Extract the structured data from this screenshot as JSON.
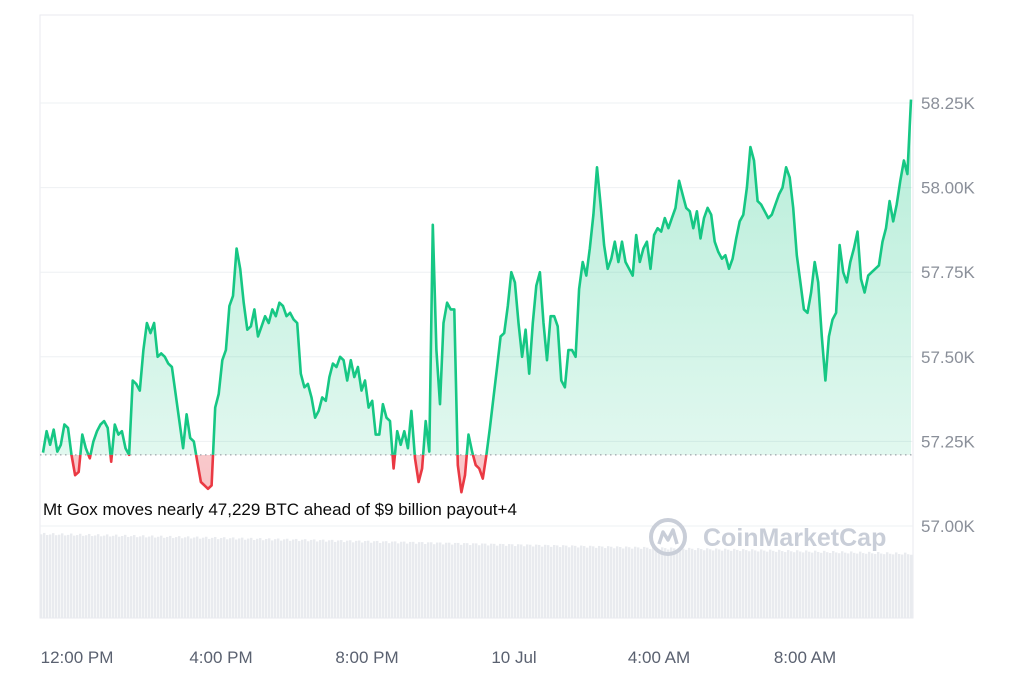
{
  "chart_data": {
    "type": "line",
    "y_tick_labels": [
      "58.25K",
      "58.00K",
      "57.75K",
      "57.50K",
      "57.25K",
      "57.00K"
    ],
    "y_ticks": [
      58250,
      58000,
      57750,
      57500,
      57250,
      57000
    ],
    "x_tick_labels": [
      "12:00 PM",
      "4:00 PM",
      "8:00 PM",
      "10 Jul",
      "4:00 AM",
      "8:00 AM"
    ],
    "x_ticks_hours": [
      0,
      4,
      8,
      12,
      16,
      20
    ],
    "x_range_hours": [
      0,
      23.9
    ],
    "ylim": [
      56800,
      58500
    ],
    "baseline": 57210,
    "annotation": "Mt Gox moves nearly 47,229 BTC ahead of $9 billion payout+4",
    "watermark": "CoinMarketCap",
    "colors": {
      "up": "#16c784",
      "down": "#ea3943",
      "grid": "#eef0f3",
      "volume": "#e9ebef"
    },
    "series": [
      {
        "points": [
          [
            0.0,
            57217
          ],
          [
            0.08,
            57280
          ],
          [
            0.16,
            57240
          ],
          [
            0.24,
            57285
          ],
          [
            0.32,
            57220
          ],
          [
            0.4,
            57240
          ],
          [
            0.48,
            57300
          ],
          [
            0.56,
            57290
          ],
          [
            0.64,
            57210
          ],
          [
            0.72,
            57150
          ],
          [
            0.8,
            57160
          ],
          [
            0.88,
            57270
          ],
          [
            0.96,
            57230
          ],
          [
            1.05,
            57200
          ],
          [
            1.13,
            57250
          ],
          [
            1.21,
            57280
          ],
          [
            1.29,
            57300
          ],
          [
            1.37,
            57310
          ],
          [
            1.45,
            57290
          ],
          [
            1.53,
            57190
          ],
          [
            1.61,
            57300
          ],
          [
            1.69,
            57270
          ],
          [
            1.77,
            57280
          ],
          [
            1.85,
            57230
          ],
          [
            1.93,
            57210
          ],
          [
            2.01,
            57430
          ],
          [
            2.09,
            57420
          ],
          [
            2.17,
            57400
          ],
          [
            2.25,
            57520
          ],
          [
            2.33,
            57600
          ],
          [
            2.41,
            57570
          ],
          [
            2.49,
            57600
          ],
          [
            2.57,
            57500
          ],
          [
            2.65,
            57510
          ],
          [
            2.73,
            57500
          ],
          [
            2.81,
            57480
          ],
          [
            2.89,
            57470
          ],
          [
            3.14,
            57230
          ],
          [
            3.22,
            57330
          ],
          [
            3.3,
            57260
          ],
          [
            3.38,
            57250
          ],
          [
            3.46,
            57190
          ],
          [
            3.54,
            57130
          ],
          [
            3.62,
            57120
          ],
          [
            3.7,
            57110
          ],
          [
            3.78,
            57120
          ],
          [
            3.86,
            57350
          ],
          [
            3.94,
            57390
          ],
          [
            4.02,
            57490
          ],
          [
            4.1,
            57520
          ],
          [
            4.18,
            57650
          ],
          [
            4.26,
            57680
          ],
          [
            4.34,
            57820
          ],
          [
            4.42,
            57760
          ],
          [
            4.5,
            57660
          ],
          [
            4.58,
            57580
          ],
          [
            4.66,
            57590
          ],
          [
            4.74,
            57640
          ],
          [
            4.82,
            57560
          ],
          [
            4.9,
            57590
          ],
          [
            4.98,
            57620
          ],
          [
            5.06,
            57600
          ],
          [
            5.14,
            57640
          ],
          [
            5.22,
            57620
          ],
          [
            5.3,
            57660
          ],
          [
            5.38,
            57650
          ],
          [
            5.46,
            57620
          ],
          [
            5.54,
            57630
          ],
          [
            5.62,
            57610
          ],
          [
            5.7,
            57600
          ],
          [
            5.78,
            57450
          ],
          [
            5.86,
            57410
          ],
          [
            5.94,
            57420
          ],
          [
            6.02,
            57380
          ],
          [
            6.1,
            57320
          ],
          [
            6.18,
            57340
          ],
          [
            6.26,
            57380
          ],
          [
            6.34,
            57370
          ],
          [
            6.42,
            57440
          ],
          [
            6.5,
            57480
          ],
          [
            6.58,
            57470
          ],
          [
            6.66,
            57500
          ],
          [
            6.74,
            57490
          ],
          [
            6.82,
            57430
          ],
          [
            6.9,
            57490
          ],
          [
            6.98,
            57440
          ],
          [
            7.06,
            57470
          ],
          [
            7.14,
            57400
          ],
          [
            7.22,
            57430
          ],
          [
            7.3,
            57350
          ],
          [
            7.38,
            57370
          ],
          [
            7.46,
            57270
          ],
          [
            7.54,
            57270
          ],
          [
            7.62,
            57360
          ],
          [
            7.7,
            57320
          ],
          [
            7.78,
            57310
          ],
          [
            7.86,
            57170
          ],
          [
            7.94,
            57280
          ],
          [
            8.02,
            57240
          ],
          [
            8.1,
            57280
          ],
          [
            8.18,
            57230
          ],
          [
            8.26,
            57340
          ],
          [
            8.34,
            57200
          ],
          [
            8.42,
            57130
          ],
          [
            8.5,
            57170
          ],
          [
            8.58,
            57310
          ],
          [
            8.66,
            57220
          ],
          [
            8.74,
            57890
          ],
          [
            8.82,
            57520
          ],
          [
            8.9,
            57360
          ],
          [
            8.98,
            57600
          ],
          [
            9.06,
            57660
          ],
          [
            9.14,
            57640
          ],
          [
            9.22,
            57640
          ],
          [
            9.3,
            57180
          ],
          [
            9.38,
            57100
          ],
          [
            9.46,
            57150
          ],
          [
            9.54,
            57270
          ],
          [
            9.62,
            57220
          ],
          [
            9.7,
            57180
          ],
          [
            9.78,
            57170
          ],
          [
            9.86,
            57140
          ],
          [
            9.94,
            57210
          ],
          [
            10.02,
            57290
          ],
          [
            10.1,
            57380
          ],
          [
            10.18,
            57470
          ],
          [
            10.26,
            57560
          ],
          [
            10.34,
            57570
          ],
          [
            10.42,
            57650
          ],
          [
            10.5,
            57750
          ],
          [
            10.58,
            57720
          ],
          [
            10.66,
            57600
          ],
          [
            10.74,
            57500
          ],
          [
            10.82,
            57580
          ],
          [
            10.9,
            57450
          ],
          [
            10.98,
            57600
          ],
          [
            11.06,
            57710
          ],
          [
            11.14,
            57750
          ],
          [
            11.22,
            57600
          ],
          [
            11.3,
            57490
          ],
          [
            11.38,
            57620
          ],
          [
            11.46,
            57620
          ],
          [
            11.54,
            57590
          ],
          [
            11.62,
            57430
          ],
          [
            11.7,
            57410
          ],
          [
            11.78,
            57520
          ],
          [
            11.86,
            57520
          ],
          [
            11.94,
            57500
          ],
          [
            12.02,
            57700
          ],
          [
            12.1,
            57780
          ],
          [
            12.18,
            57740
          ],
          [
            12.26,
            57820
          ],
          [
            12.34,
            57920
          ],
          [
            12.42,
            58060
          ],
          [
            12.5,
            57950
          ],
          [
            12.58,
            57830
          ],
          [
            12.66,
            57760
          ],
          [
            12.74,
            57790
          ],
          [
            12.82,
            57840
          ],
          [
            12.9,
            57780
          ],
          [
            12.98,
            57840
          ],
          [
            13.06,
            57780
          ],
          [
            13.14,
            57760
          ],
          [
            13.22,
            57740
          ],
          [
            13.3,
            57860
          ],
          [
            13.38,
            57780
          ],
          [
            13.46,
            57820
          ],
          [
            13.54,
            57840
          ],
          [
            13.62,
            57760
          ],
          [
            13.7,
            57860
          ],
          [
            13.78,
            57880
          ],
          [
            13.86,
            57870
          ],
          [
            13.94,
            57910
          ],
          [
            14.02,
            57880
          ],
          [
            14.1,
            57910
          ],
          [
            14.18,
            57940
          ],
          [
            14.26,
            58020
          ],
          [
            14.34,
            57980
          ],
          [
            14.42,
            57940
          ],
          [
            14.5,
            57930
          ],
          [
            14.58,
            57880
          ],
          [
            14.66,
            57930
          ],
          [
            14.74,
            57850
          ],
          [
            14.82,
            57910
          ],
          [
            14.9,
            57940
          ],
          [
            14.98,
            57920
          ],
          [
            15.06,
            57840
          ],
          [
            15.14,
            57810
          ],
          [
            15.22,
            57790
          ],
          [
            15.3,
            57800
          ],
          [
            15.38,
            57760
          ],
          [
            15.46,
            57790
          ],
          [
            15.54,
            57850
          ],
          [
            15.62,
            57900
          ],
          [
            15.7,
            57920
          ],
          [
            15.78,
            58000
          ],
          [
            15.86,
            58120
          ],
          [
            15.94,
            58080
          ],
          [
            16.02,
            57960
          ],
          [
            16.1,
            57950
          ],
          [
            16.18,
            57930
          ],
          [
            16.26,
            57910
          ],
          [
            16.34,
            57920
          ],
          [
            16.42,
            57950
          ],
          [
            16.5,
            57980
          ],
          [
            16.58,
            58000
          ],
          [
            16.66,
            58060
          ],
          [
            16.74,
            58030
          ],
          [
            16.82,
            57940
          ],
          [
            16.9,
            57800
          ],
          [
            16.98,
            57720
          ],
          [
            17.06,
            57640
          ],
          [
            17.14,
            57630
          ],
          [
            17.22,
            57690
          ],
          [
            17.3,
            57780
          ],
          [
            17.38,
            57720
          ],
          [
            17.46,
            57560
          ],
          [
            17.54,
            57430
          ],
          [
            17.62,
            57560
          ],
          [
            17.7,
            57610
          ],
          [
            17.78,
            57630
          ],
          [
            17.86,
            57830
          ],
          [
            17.94,
            57750
          ],
          [
            18.02,
            57720
          ],
          [
            18.1,
            57780
          ],
          [
            18.18,
            57820
          ],
          [
            18.26,
            57870
          ],
          [
            18.34,
            57730
          ],
          [
            18.42,
            57690
          ],
          [
            18.5,
            57740
          ],
          [
            18.58,
            57750
          ],
          [
            18.66,
            57760
          ],
          [
            18.74,
            57770
          ],
          [
            18.82,
            57840
          ],
          [
            18.9,
            57880
          ],
          [
            18.98,
            57960
          ],
          [
            19.06,
            57900
          ],
          [
            19.14,
            57950
          ],
          [
            19.22,
            58020
          ],
          [
            19.3,
            58080
          ],
          [
            19.38,
            58040
          ],
          [
            19.46,
            58260
          ]
        ]
      }
    ]
  }
}
